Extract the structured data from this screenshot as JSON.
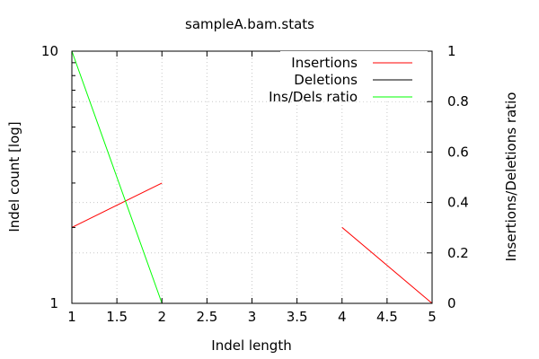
{
  "chart_data": {
    "type": "line",
    "title": "sampleA.bam.stats",
    "xlabel": "Indel length",
    "ylabel": "Indel count [log]",
    "y2label": "Insertions/Deletions ratio",
    "xlim": [
      1,
      5
    ],
    "ylim": [
      1,
      10
    ],
    "yscale": "log",
    "y2lim": [
      0,
      1
    ],
    "x_ticks": [
      "1",
      "1.5",
      "2",
      "2.5",
      "3",
      "3.5",
      "4",
      "4.5",
      "5"
    ],
    "x_tick_values": [
      1,
      1.5,
      2,
      2.5,
      3,
      3.5,
      4,
      4.5,
      5
    ],
    "y_ticks": [
      "1",
      "10"
    ],
    "y_tick_values": [
      1,
      10
    ],
    "y2_ticks": [
      "0",
      "0.2",
      "0.4",
      "0.6",
      "0.8",
      "1"
    ],
    "y2_tick_values": [
      0,
      0.2,
      0.4,
      0.6,
      0.8,
      1
    ],
    "grid": true,
    "legend_position": "top-right",
    "series": [
      {
        "name": "Insertions",
        "color": "#ff0000",
        "axis": "y",
        "segments": [
          [
            [
              1,
              2
            ],
            [
              2,
              3
            ]
          ],
          [
            [
              4,
              2
            ],
            [
              5,
              1
            ]
          ]
        ]
      },
      {
        "name": "Deletions",
        "color": "#000000",
        "axis": "y",
        "segments": []
      },
      {
        "name": "Ins/Dels ratio",
        "color": "#00ff00",
        "axis": "y2",
        "segments": [
          [
            [
              1,
              1
            ],
            [
              2,
              0
            ]
          ]
        ]
      }
    ]
  }
}
